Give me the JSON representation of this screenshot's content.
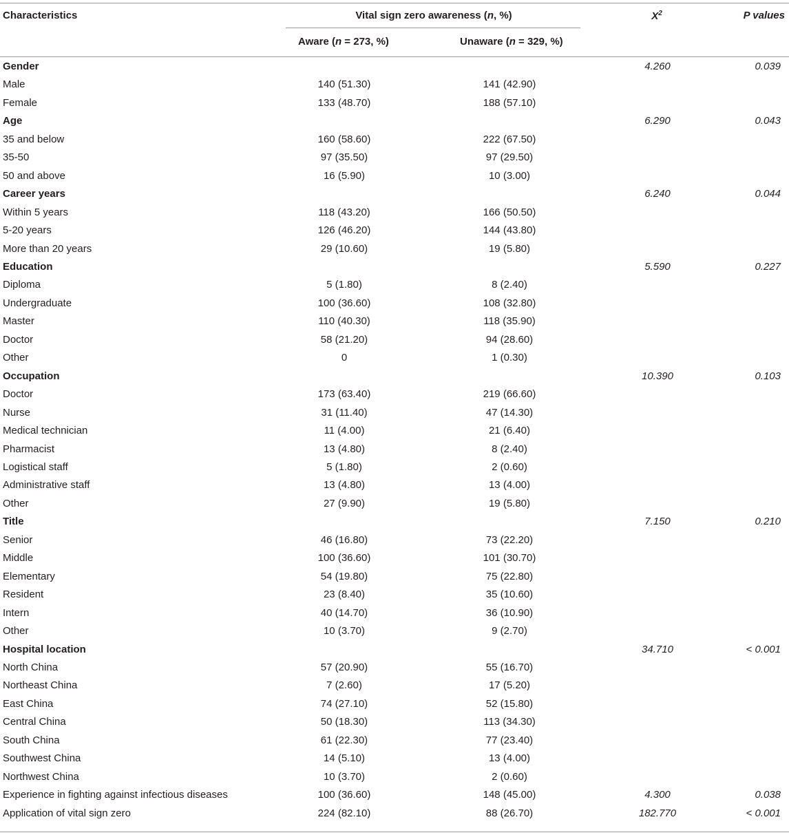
{
  "header": {
    "characteristics": "Characteristics",
    "awareness_pre": "Vital sign zero awareness (",
    "awareness_n": "n",
    "awareness_post": ", %)",
    "chi_base": "X",
    "chi_sup": "2",
    "p_values": "P values",
    "aware_pre": "Aware (",
    "aware_n": "n",
    "aware_post": " = 273, %)",
    "unaware_pre": "Unaware (",
    "unaware_n": "n",
    "unaware_post": " = 329, %)"
  },
  "rows": [
    {
      "label": "Gender",
      "group": true,
      "aware": "",
      "unaware": "",
      "chi": "4.260",
      "p": "0.039"
    },
    {
      "label": "Male",
      "aware": "140 (51.30)",
      "unaware": "141 (42.90)",
      "chi": "",
      "p": ""
    },
    {
      "label": "Female",
      "aware": "133 (48.70)",
      "unaware": "188 (57.10)",
      "chi": "",
      "p": ""
    },
    {
      "label": "Age",
      "group": true,
      "aware": "",
      "unaware": "",
      "chi": "6.290",
      "p": "0.043"
    },
    {
      "label": "35 and below",
      "aware": "160 (58.60)",
      "unaware": "222 (67.50)",
      "chi": "",
      "p": ""
    },
    {
      "label": "35-50",
      "aware": "97 (35.50)",
      "unaware": "97 (29.50)",
      "chi": "",
      "p": ""
    },
    {
      "label": "50 and above",
      "aware": "16 (5.90)",
      "unaware": "10 (3.00)",
      "chi": "",
      "p": ""
    },
    {
      "label": "Career years",
      "group": true,
      "aware": "",
      "unaware": "",
      "chi": "6.240",
      "p": "0.044"
    },
    {
      "label": "Within 5 years",
      "aware": "118 (43.20)",
      "unaware": "166 (50.50)",
      "chi": "",
      "p": ""
    },
    {
      "label": "5-20 years",
      "aware": "126 (46.20)",
      "unaware": "144 (43.80)",
      "chi": "",
      "p": ""
    },
    {
      "label": "More than 20 years",
      "aware": "29 (10.60)",
      "unaware": "19 (5.80)",
      "chi": "",
      "p": ""
    },
    {
      "label": "Education",
      "group": true,
      "aware": "",
      "unaware": "",
      "chi": "5.590",
      "p": "0.227"
    },
    {
      "label": "Diploma",
      "aware": "5 (1.80)",
      "unaware": "8 (2.40)",
      "chi": "",
      "p": ""
    },
    {
      "label": "Undergraduate",
      "aware": "100 (36.60)",
      "unaware": "108 (32.80)",
      "chi": "",
      "p": ""
    },
    {
      "label": "Master",
      "aware": "110 (40.30)",
      "unaware": "118 (35.90)",
      "chi": "",
      "p": ""
    },
    {
      "label": "Doctor",
      "aware": "58 (21.20)",
      "unaware": "94 (28.60)",
      "chi": "",
      "p": ""
    },
    {
      "label": "Other",
      "aware": "0",
      "unaware": "1 (0.30)",
      "chi": "",
      "p": ""
    },
    {
      "label": "Occupation",
      "group": true,
      "aware": "",
      "unaware": "",
      "chi": "10.390",
      "p": "0.103"
    },
    {
      "label": "Doctor",
      "aware": "173 (63.40)",
      "unaware": "219 (66.60)",
      "chi": "",
      "p": ""
    },
    {
      "label": "Nurse",
      "aware": "31 (11.40)",
      "unaware": "47 (14.30)",
      "chi": "",
      "p": ""
    },
    {
      "label": "Medical technician",
      "aware": "11 (4.00)",
      "unaware": "21 (6.40)",
      "chi": "",
      "p": ""
    },
    {
      "label": "Pharmacist",
      "aware": "13 (4.80)",
      "unaware": "8 (2.40)",
      "chi": "",
      "p": ""
    },
    {
      "label": "Logistical staff",
      "aware": "5 (1.80)",
      "unaware": "2 (0.60)",
      "chi": "",
      "p": ""
    },
    {
      "label": "Administrative staff",
      "aware": "13 (4.80)",
      "unaware": "13 (4.00)",
      "chi": "",
      "p": ""
    },
    {
      "label": "Other",
      "aware": "27 (9.90)",
      "unaware": "19 (5.80)",
      "chi": "",
      "p": ""
    },
    {
      "label": "Title",
      "group": true,
      "aware": "",
      "unaware": "",
      "chi": "7.150",
      "p": "0.210"
    },
    {
      "label": "Senior",
      "aware": "46 (16.80)",
      "unaware": "73 (22.20)",
      "chi": "",
      "p": ""
    },
    {
      "label": "Middle",
      "aware": "100 (36.60)",
      "unaware": "101 (30.70)",
      "chi": "",
      "p": ""
    },
    {
      "label": "Elementary",
      "aware": "54 (19.80)",
      "unaware": "75 (22.80)",
      "chi": "",
      "p": ""
    },
    {
      "label": "Resident",
      "aware": "23 (8.40)",
      "unaware": "35 (10.60)",
      "chi": "",
      "p": ""
    },
    {
      "label": "Intern",
      "aware": "40 (14.70)",
      "unaware": "36 (10.90)",
      "chi": "",
      "p": ""
    },
    {
      "label": "Other",
      "aware": "10 (3.70)",
      "unaware": "9 (2.70)",
      "chi": "",
      "p": ""
    },
    {
      "label": "Hospital location",
      "group": true,
      "aware": "",
      "unaware": "",
      "chi": "34.710",
      "p": "< 0.001"
    },
    {
      "label": "North China",
      "aware": "57 (20.90)",
      "unaware": "55 (16.70)",
      "chi": "",
      "p": ""
    },
    {
      "label": "Northeast China",
      "aware": "7 (2.60)",
      "unaware": "17 (5.20)",
      "chi": "",
      "p": ""
    },
    {
      "label": "East China",
      "aware": "74 (27.10)",
      "unaware": "52 (15.80)",
      "chi": "",
      "p": ""
    },
    {
      "label": "Central China",
      "aware": "50 (18.30)",
      "unaware": "113 (34.30)",
      "chi": "",
      "p": ""
    },
    {
      "label": "South China",
      "aware": "61 (22.30)",
      "unaware": "77 (23.40)",
      "chi": "",
      "p": ""
    },
    {
      "label": "Southwest China",
      "aware": "14 (5.10)",
      "unaware": "13 (4.00)",
      "chi": "",
      "p": ""
    },
    {
      "label": "Northwest China",
      "aware": "10 (3.70)",
      "unaware": "2 (0.60)",
      "chi": "",
      "p": ""
    },
    {
      "label": "Experience in fighting against infectious diseases",
      "aware": "100 (36.60)",
      "unaware": "148 (45.00)",
      "chi": "4.300",
      "p": "0.038"
    },
    {
      "label": "Application of vital sign zero",
      "aware": "224 (82.10)",
      "unaware": "88 (26.70)",
      "chi": "182.770",
      "p": "< 0.001"
    }
  ]
}
